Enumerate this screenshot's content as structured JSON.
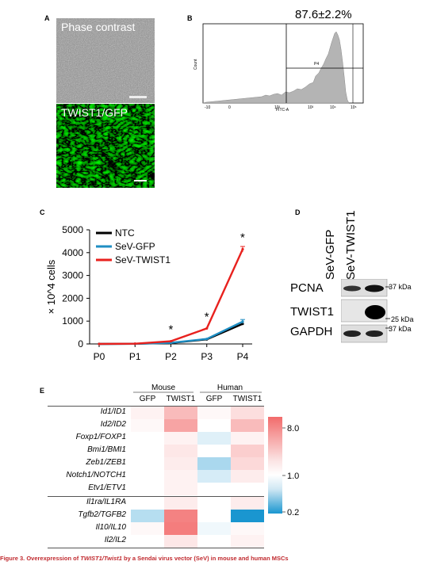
{
  "panels": {
    "a": {
      "letter": "A",
      "top_label": "Phase contrast",
      "bottom_label": "TWIST1/GFP"
    },
    "b": {
      "letter": "B",
      "percentage": "87.6±2.2%",
      "ylabel": "Count",
      "xlabel": "FITC-A",
      "gate_label": "P4",
      "x_ticks": [
        "-10",
        "0",
        "10²",
        "10³",
        "10⁴",
        "10⁵"
      ]
    },
    "c": {
      "letter": "C",
      "ylabel": "× 10^4 cells",
      "star": "*"
    },
    "d": {
      "letter": "D",
      "columns": [
        "SeV-GFP",
        "SeV-TWIST1"
      ],
      "rows": [
        "PCNA",
        "TWIST1",
        "GAPDH"
      ],
      "markers": [
        "37 kDa",
        "25 kDa",
        "37 kDa"
      ]
    },
    "e": {
      "letter": "E",
      "groups": [
        "Mouse",
        "Human"
      ],
      "columns": [
        "GFP",
        "TWIST1",
        "GFP",
        "TWIST1"
      ],
      "genes": [
        "Id1/ID1",
        "Id2/ID2",
        "Foxp1/FOXP1",
        "Bmi1/BMI1",
        "Zeb1/ZEB1",
        "Notch1/NOTCH1",
        "Etv1/ETV1",
        "Il1ra/IL1RA",
        "Tgfb2/TGFB2",
        "Il10/IL10",
        "Il2/IL2"
      ],
      "colorbar_ticks": [
        "8.0",
        "1.0",
        "0.2"
      ]
    }
  },
  "chart_data": {
    "type": "line",
    "categories": [
      "P0",
      "P1",
      "P2",
      "P3",
      "P4"
    ],
    "ylim": [
      0,
      5000
    ],
    "y_ticks": [
      0,
      1000,
      2000,
      3000,
      4000,
      5000
    ],
    "xlabel": "",
    "ylabel": "× 10^4 cells",
    "legend_position": "top-left",
    "series": [
      {
        "name": "NTC",
        "color": "#000000",
        "values": [
          0,
          5,
          40,
          200,
          880
        ]
      },
      {
        "name": "SeV-GFP",
        "color": "#1f8ec3",
        "values": [
          0,
          5,
          50,
          220,
          980
        ]
      },
      {
        "name": "SeV-TWIST1",
        "color": "#e8211e",
        "values": [
          0,
          10,
          120,
          680,
          4150
        ]
      }
    ],
    "significance_markers": [
      "P2",
      "P3",
      "P4"
    ]
  },
  "heatmap_data": {
    "scale": "fold change",
    "range": [
      0.2,
      8.0
    ],
    "values": [
      [
        1.2,
        2.6,
        1.1,
        1.6
      ],
      [
        1.1,
        3.6,
        1.0,
        2.6
      ],
      [
        1.0,
        1.2,
        0.8,
        1.2
      ],
      [
        1.0,
        1.4,
        1.0,
        2.0
      ],
      [
        1.0,
        1.3,
        0.55,
        1.7
      ],
      [
        1.0,
        1.2,
        0.75,
        1.3
      ],
      [
        1.0,
        1.2,
        1.0,
        1.0
      ],
      [
        1.0,
        1.3,
        1.0,
        1.3
      ],
      [
        0.6,
        5.8,
        1.0,
        0.2
      ],
      [
        1.1,
        6.2,
        0.9,
        1.1
      ],
      [
        1.0,
        1.4,
        1.0,
        1.2
      ]
    ]
  },
  "caption": {
    "prefix": "Figure 3.  Overexpression of ",
    "gene_italic": "TWIST1/Twist1",
    "suffix": " by a Sendai virus vector (SeV) in mouse and human MSCs"
  }
}
